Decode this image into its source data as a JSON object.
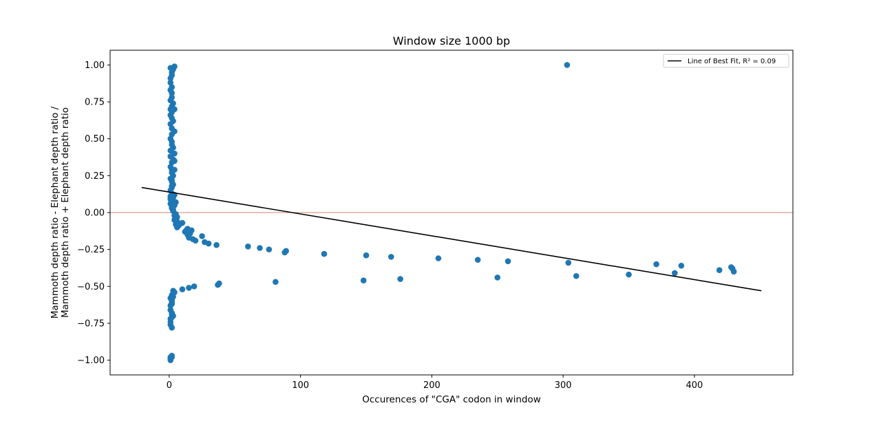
{
  "chart_data": {
    "type": "scatter",
    "title": "Window size 1000 bp",
    "xlabel": "Occurences of \"CGA\" codon in window",
    "ylabel_lines": [
      "Mammoth depth ratio - Elephant depth ratio /",
      "Mammoth depth ratio + Elephant depth ratio"
    ],
    "xlim": [
      -45,
      475
    ],
    "ylim": [
      -1.1,
      1.1
    ],
    "xticks": [
      0,
      100,
      200,
      300,
      400
    ],
    "yticks": [
      -1.0,
      -0.75,
      -0.5,
      -0.25,
      0.0,
      0.25,
      0.5,
      0.75,
      1.0
    ],
    "ytick_labels": [
      "−1.00",
      "−0.75",
      "−0.50",
      "−0.25",
      "0.00",
      "0.25",
      "0.50",
      "0.75",
      "1.00"
    ],
    "grid": false,
    "legend_position": "upper right",
    "reference_line": {
      "y": 0.0,
      "color": "#d2806b"
    },
    "series": [
      {
        "type": "scatter",
        "color": "#1f77b4",
        "x": [
          1,
          2,
          2,
          3,
          4,
          1,
          1,
          2,
          1,
          2,
          2,
          1,
          3,
          2,
          1,
          2,
          4,
          1,
          2,
          3,
          1,
          2,
          4,
          2,
          1,
          2,
          2,
          3,
          1,
          4,
          1,
          3,
          2,
          4,
          1,
          2,
          2,
          3,
          1,
          4,
          2,
          3,
          2,
          1,
          2,
          1,
          3,
          2,
          1,
          4,
          2,
          3,
          3,
          1,
          2,
          2,
          4,
          1,
          2,
          4,
          5,
          4,
          5,
          5,
          6,
          6,
          5,
          4,
          6,
          7,
          8,
          10,
          12,
          13,
          14,
          14,
          15,
          16,
          17,
          18,
          20,
          25,
          27,
          30,
          36,
          60,
          69,
          76,
          88,
          89,
          118,
          150,
          169,
          205,
          235,
          258,
          304,
          350,
          371,
          385,
          390,
          419,
          428,
          429,
          430,
          303,
          10,
          15,
          19,
          37,
          38,
          81,
          148,
          176,
          250,
          310,
          1,
          2,
          2,
          3,
          3,
          2,
          4,
          2,
          3,
          1,
          1,
          1,
          2,
          2,
          1,
          2,
          1,
          1,
          2,
          2,
          3,
          1,
          1,
          2,
          2
        ],
        "y": [
          0.98,
          0.95,
          0.93,
          0.97,
          0.99,
          0.91,
          0.88,
          0.85,
          0.83,
          0.81,
          0.78,
          0.76,
          0.74,
          0.72,
          0.7,
          0.68,
          0.7,
          0.66,
          0.64,
          0.62,
          0.6,
          0.57,
          0.55,
          0.53,
          0.5,
          0.48,
          0.46,
          0.44,
          0.42,
          0.4,
          0.38,
          0.36,
          0.34,
          0.35,
          0.31,
          0.29,
          0.27,
          0.25,
          0.23,
          0.29,
          0.21,
          0.19,
          0.17,
          0.15,
          0.13,
          0.11,
          0.1,
          0.08,
          0.06,
          0.05,
          0.03,
          0.01,
          0.02,
          0.1,
          0.22,
          0.18,
          0.12,
          0.09,
          0.04,
          0.05,
          0.07,
          -0.02,
          -0.01,
          -0.04,
          -0.03,
          -0.06,
          -0.08,
          -0.05,
          -0.1,
          -0.09,
          -0.08,
          -0.07,
          -0.13,
          -0.12,
          -0.11,
          -0.15,
          -0.17,
          -0.14,
          -0.12,
          -0.18,
          -0.19,
          -0.16,
          -0.2,
          -0.21,
          -0.22,
          -0.23,
          -0.24,
          -0.25,
          -0.27,
          -0.26,
          -0.28,
          -0.29,
          -0.3,
          -0.31,
          -0.32,
          -0.33,
          -0.34,
          -0.42,
          -0.35,
          -0.41,
          -0.36,
          -0.39,
          -0.37,
          -0.38,
          -0.4,
          1.0,
          -0.52,
          -0.51,
          -0.5,
          -0.49,
          -0.48,
          -0.47,
          -0.46,
          -0.45,
          -0.44,
          -0.43,
          -0.58,
          -0.6,
          -0.56,
          -0.53,
          -0.55,
          -0.62,
          -0.54,
          -0.68,
          -0.7,
          -0.72,
          -0.74,
          -0.76,
          -0.78,
          -0.69,
          -0.99,
          -0.98,
          -1.0,
          -0.98,
          -0.97,
          -0.61,
          -0.57,
          -0.66,
          -0.63,
          -0.71,
          -0.59
        ]
      }
    ],
    "best_fit": {
      "name": "Line of Best Fit, R² = 0.09",
      "color": "#000000",
      "x": [
        -21,
        451
      ],
      "y": [
        0.17,
        -0.53
      ]
    }
  }
}
